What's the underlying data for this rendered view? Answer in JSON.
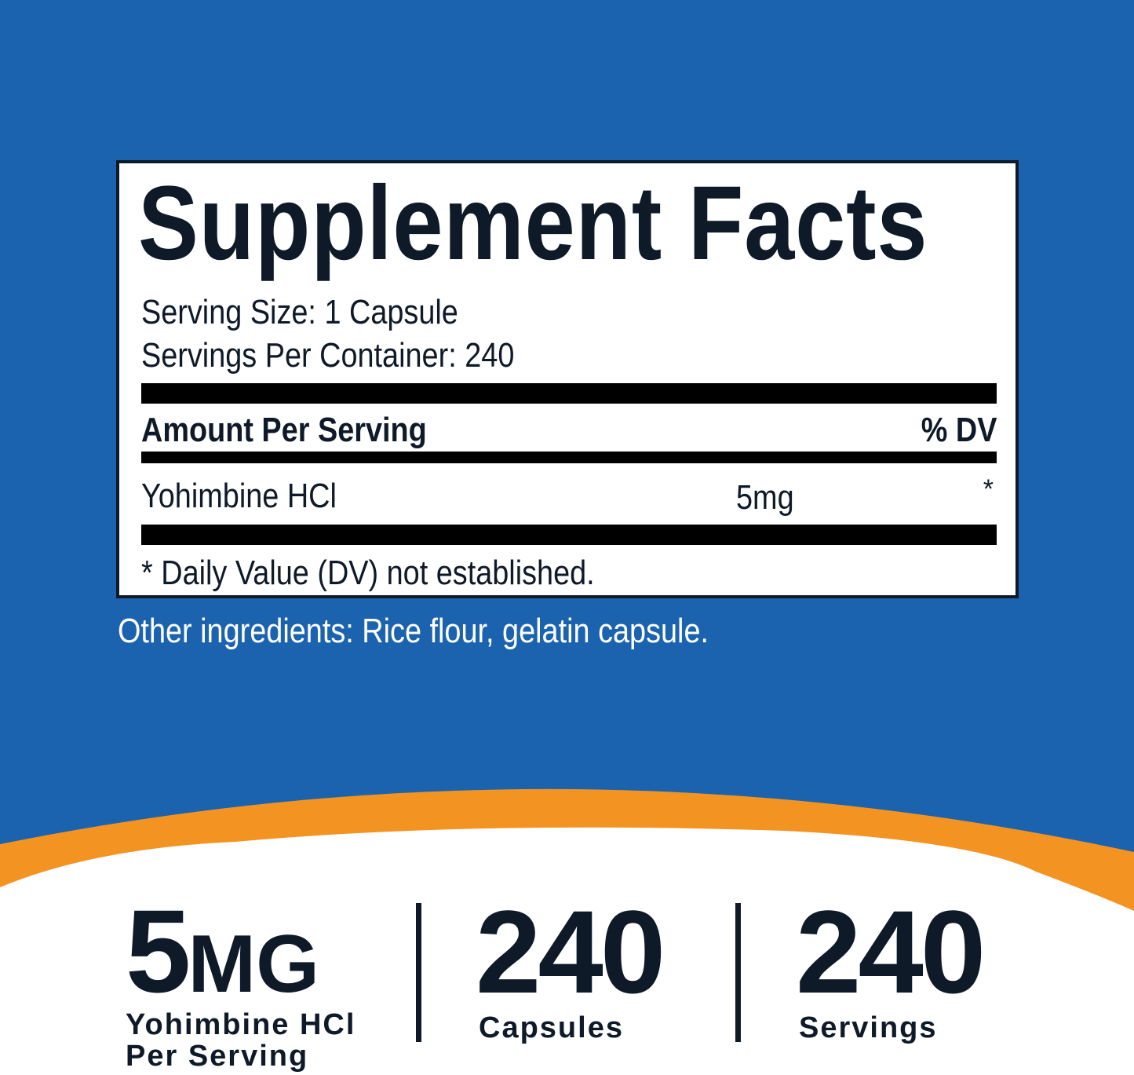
{
  "colors": {
    "background": "#1b63ae",
    "accent_orange": "#f39322",
    "text_dark": "#0f1a29"
  },
  "facts": {
    "title": "Supplement Facts",
    "serving_size": "Serving Size: 1 Capsule",
    "servings_per_container": "Servings Per Container: 240",
    "header_amount": "Amount Per Serving",
    "header_dv": "% DV",
    "ingredients": [
      {
        "name": "Yohimbine HCl",
        "amount": "5mg",
        "dv": "*"
      }
    ],
    "footnote": "* Daily Value (DV) not established."
  },
  "other_ingredients": "Other ingredients: Rice flour, gelatin capsule.",
  "highlights": [
    {
      "value": "5",
      "unit": "MG",
      "label_line1": "Yohimbine HCl",
      "label_line2": "Per Serving"
    },
    {
      "value": "240",
      "label": "Capsules"
    },
    {
      "value": "240",
      "label": "Servings"
    }
  ]
}
